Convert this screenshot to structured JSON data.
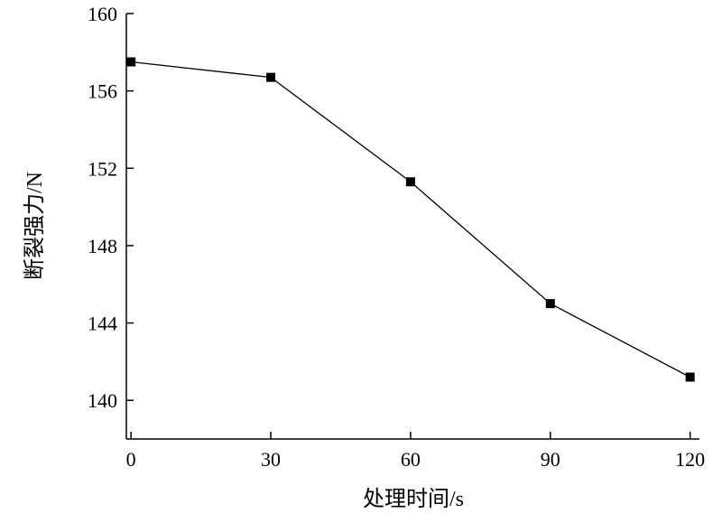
{
  "chart_data": {
    "type": "line",
    "x_label": "处理时间/s",
    "y_label": "断裂强力/N",
    "x": [
      0,
      30,
      60,
      90,
      120
    ],
    "series": [
      {
        "color": "#000000",
        "values": [
          157.5,
          156.7,
          151.3,
          145.0,
          141.2
        ]
      }
    ],
    "xlim": [
      -1,
      122
    ],
    "xticks": [
      0,
      30,
      60,
      90,
      120
    ],
    "ylim": [
      138,
      160
    ],
    "yticks": [
      140,
      144,
      148,
      152,
      156,
      160
    ]
  }
}
